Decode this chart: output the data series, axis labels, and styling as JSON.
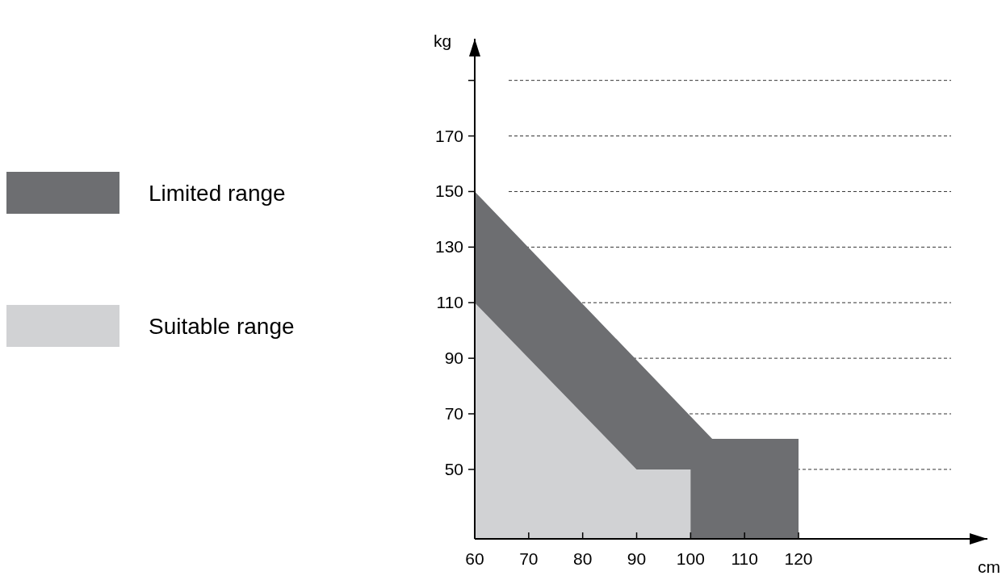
{
  "chart_data": {
    "type": "area",
    "xlabel": "cm",
    "ylabel": "kg",
    "xlim": [
      60,
      155
    ],
    "xticks": [
      60,
      70,
      80,
      90,
      100,
      110,
      120
    ],
    "ylim": [
      25,
      205
    ],
    "yticks": [
      50,
      70,
      90,
      110,
      130,
      150,
      170,
      {
        "value": 190,
        "label": null
      }
    ],
    "grid": "y",
    "line_style": "dashed",
    "legend": "left",
    "series": [
      {
        "name": "Limited range",
        "color": "#6d6e71",
        "x": [
          60,
          104,
          120
        ],
        "values": [
          150,
          61,
          61
        ]
      },
      {
        "name": "Suitable range",
        "color": "#d1d2d4",
        "x": [
          60,
          90,
          100
        ],
        "values": [
          110,
          50,
          50
        ]
      }
    ]
  }
}
